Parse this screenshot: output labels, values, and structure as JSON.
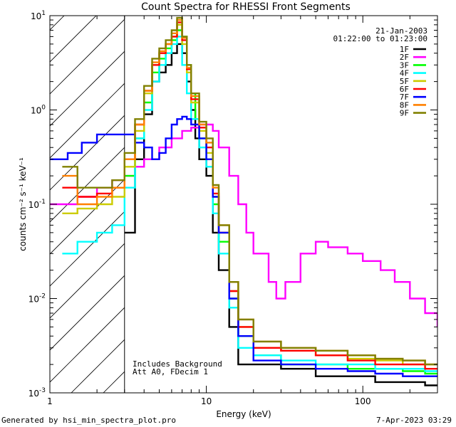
{
  "chart_data": {
    "type": "line",
    "title": "Count Spectra for RHESSI Front Segments",
    "xlabel": "Energy (keV)",
    "ylabel": "counts cm⁻² s⁻¹ keV⁻¹",
    "xscale": "log",
    "yscale": "log",
    "xlim": [
      1,
      300
    ],
    "ylim": [
      0.001,
      10
    ],
    "x_ticks": [
      {
        "value": 1,
        "label": "1"
      },
      {
        "value": 10,
        "label": "10"
      },
      {
        "value": 100,
        "label": "100"
      }
    ],
    "y_ticks": [
      {
        "value": 10,
        "label": "10",
        "exp": "1"
      },
      {
        "value": 1,
        "label": "10",
        "exp": "0"
      },
      {
        "value": 0.1,
        "label": "10",
        "exp": "-1"
      },
      {
        "value": 0.01,
        "label": "10",
        "exp": "-2"
      },
      {
        "value": 0.001,
        "label": "10",
        "exp": "-3"
      }
    ],
    "date": "21-Jan-2003",
    "time_range": "01:22:00 to 01:23:00",
    "hatched_below_keV": 3,
    "annotations": [
      "Includes Background",
      "Att A0, FDecim 1"
    ],
    "footer_left": "Generated by hsi_min_spectra_plot.pro",
    "footer_right": "7-Apr-2023 03:29",
    "series": [
      {
        "name": "1F",
        "color": "#000000",
        "points": [
          [
            3,
            0.05
          ],
          [
            3.5,
            0.3
          ],
          [
            4,
            0.9
          ],
          [
            4.5,
            2.0
          ],
          [
            5,
            2.5
          ],
          [
            5.5,
            3.0
          ],
          [
            6,
            4.0
          ],
          [
            6.5,
            5.0
          ],
          [
            7,
            4.0
          ],
          [
            7.5,
            2.0
          ],
          [
            8,
            1.0
          ],
          [
            8.5,
            0.5
          ],
          [
            9,
            0.3
          ],
          [
            10,
            0.2
          ],
          [
            11,
            0.05
          ],
          [
            12,
            0.02
          ],
          [
            14,
            0.005
          ],
          [
            16,
            0.002
          ],
          [
            20,
            0.002
          ],
          [
            30,
            0.0018
          ],
          [
            50,
            0.0015
          ],
          [
            80,
            0.0015
          ],
          [
            120,
            0.0013
          ],
          [
            180,
            0.0013
          ],
          [
            250,
            0.0012
          ],
          [
            300,
            0.0012
          ]
        ]
      },
      {
        "name": "2F",
        "color": "#ff00ff",
        "points": [
          [
            1,
            0.1
          ],
          [
            1.5,
            0.12
          ],
          [
            2,
            0.15
          ],
          [
            2.5,
            0.18
          ],
          [
            3,
            0.2
          ],
          [
            3.5,
            0.25
          ],
          [
            4,
            0.3
          ],
          [
            5,
            0.4
          ],
          [
            6,
            0.5
          ],
          [
            7,
            0.6
          ],
          [
            8,
            0.65
          ],
          [
            9,
            0.7
          ],
          [
            10,
            0.7
          ],
          [
            11,
            0.6
          ],
          [
            12,
            0.4
          ],
          [
            14,
            0.2
          ],
          [
            16,
            0.1
          ],
          [
            18,
            0.05
          ],
          [
            20,
            0.03
          ],
          [
            25,
            0.015
          ],
          [
            28,
            0.01
          ],
          [
            32,
            0.015
          ],
          [
            40,
            0.03
          ],
          [
            50,
            0.04
          ],
          [
            60,
            0.035
          ],
          [
            80,
            0.03
          ],
          [
            100,
            0.025
          ],
          [
            130,
            0.02
          ],
          [
            160,
            0.015
          ],
          [
            200,
            0.01
          ],
          [
            250,
            0.007
          ],
          [
            300,
            0.005
          ]
        ]
      },
      {
        "name": "3F",
        "color": "#00ff00",
        "points": [
          [
            3,
            0.2
          ],
          [
            3.5,
            0.5
          ],
          [
            4,
            1.2
          ],
          [
            4.5,
            2.5
          ],
          [
            5,
            3.5
          ],
          [
            5.5,
            4.5
          ],
          [
            6,
            5.5
          ],
          [
            6.5,
            7.0
          ],
          [
            7,
            6.0
          ],
          [
            7.5,
            3.0
          ],
          [
            8,
            1.5
          ],
          [
            8.5,
            0.8
          ],
          [
            9,
            0.5
          ],
          [
            10,
            0.3
          ],
          [
            11,
            0.1
          ],
          [
            12,
            0.04
          ],
          [
            14,
            0.01
          ],
          [
            16,
            0.004
          ],
          [
            20,
            0.0025
          ],
          [
            30,
            0.002
          ],
          [
            50,
            0.002
          ],
          [
            80,
            0.0018
          ],
          [
            120,
            0.0018
          ],
          [
            180,
            0.0017
          ],
          [
            250,
            0.0016
          ],
          [
            300,
            0.0016
          ]
        ]
      },
      {
        "name": "4F",
        "color": "#00ffff",
        "points": [
          [
            1.2,
            0.03
          ],
          [
            1.5,
            0.04
          ],
          [
            2,
            0.05
          ],
          [
            2.5,
            0.06
          ],
          [
            3,
            0.15
          ],
          [
            3.5,
            0.5
          ],
          [
            4,
            1.0
          ],
          [
            4.5,
            2.0
          ],
          [
            5,
            3.0
          ],
          [
            5.5,
            4.0
          ],
          [
            6,
            5.0
          ],
          [
            6.5,
            6.0
          ],
          [
            7,
            3.0
          ],
          [
            7.5,
            1.5
          ],
          [
            8,
            0.8
          ],
          [
            9,
            0.4
          ],
          [
            10,
            0.25
          ],
          [
            11,
            0.08
          ],
          [
            12,
            0.03
          ],
          [
            14,
            0.008
          ],
          [
            16,
            0.003
          ],
          [
            20,
            0.0025
          ],
          [
            30,
            0.0022
          ],
          [
            50,
            0.002
          ],
          [
            80,
            0.002
          ],
          [
            120,
            0.0018
          ],
          [
            180,
            0.0018
          ],
          [
            250,
            0.0017
          ],
          [
            300,
            0.0017
          ]
        ]
      },
      {
        "name": "5F",
        "color": "#cccc00",
        "points": [
          [
            1.2,
            0.08
          ],
          [
            1.5,
            0.09
          ],
          [
            2,
            0.1
          ],
          [
            2.5,
            0.12
          ],
          [
            3,
            0.25
          ],
          [
            3.5,
            0.6
          ],
          [
            4,
            1.5
          ],
          [
            4.5,
            3.0
          ],
          [
            5,
            4.0
          ],
          [
            5.5,
            5.0
          ],
          [
            6,
            6.0
          ],
          [
            6.5,
            8.0
          ],
          [
            7,
            5.0
          ],
          [
            7.5,
            2.5
          ],
          [
            8,
            1.2
          ],
          [
            9,
            0.6
          ],
          [
            10,
            0.35
          ],
          [
            11,
            0.12
          ],
          [
            12,
            0.05
          ],
          [
            14,
            0.012
          ],
          [
            16,
            0.005
          ],
          [
            20,
            0.003
          ],
          [
            30,
            0.0028
          ],
          [
            50,
            0.0025
          ],
          [
            80,
            0.0023
          ],
          [
            120,
            0.0022
          ],
          [
            180,
            0.002
          ],
          [
            250,
            0.002
          ],
          [
            300,
            0.002
          ]
        ]
      },
      {
        "name": "6F",
        "color": "#ff0000",
        "points": [
          [
            1.2,
            0.15
          ],
          [
            1.5,
            0.12
          ],
          [
            2,
            0.13
          ],
          [
            2.5,
            0.15
          ],
          [
            3,
            0.3
          ],
          [
            3.5,
            0.7
          ],
          [
            4,
            1.6
          ],
          [
            4.5,
            3.0
          ],
          [
            5,
            4.0
          ],
          [
            5.5,
            5.0
          ],
          [
            6,
            6.0
          ],
          [
            6.5,
            8.5
          ],
          [
            7,
            5.5
          ],
          [
            7.5,
            2.7
          ],
          [
            8,
            1.3
          ],
          [
            9,
            0.65
          ],
          [
            10,
            0.4
          ],
          [
            11,
            0.13
          ],
          [
            12,
            0.05
          ],
          [
            14,
            0.012
          ],
          [
            16,
            0.005
          ],
          [
            20,
            0.003
          ],
          [
            30,
            0.0028
          ],
          [
            50,
            0.0025
          ],
          [
            80,
            0.0022
          ],
          [
            120,
            0.002
          ],
          [
            180,
            0.002
          ],
          [
            250,
            0.0018
          ],
          [
            300,
            0.0018
          ]
        ]
      },
      {
        "name": "7F",
        "color": "#0000ff",
        "points": [
          [
            1,
            0.3
          ],
          [
            1.3,
            0.35
          ],
          [
            1.6,
            0.45
          ],
          [
            2,
            0.55
          ],
          [
            2.5,
            0.55
          ],
          [
            3,
            0.55
          ],
          [
            3.5,
            0.45
          ],
          [
            4,
            0.4
          ],
          [
            4.5,
            0.3
          ],
          [
            5,
            0.35
          ],
          [
            5.5,
            0.5
          ],
          [
            6,
            0.7
          ],
          [
            6.5,
            0.8
          ],
          [
            7,
            0.85
          ],
          [
            7.5,
            0.8
          ],
          [
            8,
            0.7
          ],
          [
            9,
            0.5
          ],
          [
            10,
            0.3
          ],
          [
            11,
            0.12
          ],
          [
            12,
            0.05
          ],
          [
            14,
            0.01
          ],
          [
            16,
            0.004
          ],
          [
            20,
            0.0022
          ],
          [
            30,
            0.002
          ],
          [
            50,
            0.0018
          ],
          [
            80,
            0.0017
          ],
          [
            120,
            0.0016
          ],
          [
            180,
            0.0015
          ],
          [
            250,
            0.0015
          ],
          [
            300,
            0.0015
          ]
        ]
      },
      {
        "name": "8F",
        "color": "#ff8000",
        "points": [
          [
            1.2,
            0.2
          ],
          [
            1.5,
            0.1
          ],
          [
            2,
            0.12
          ],
          [
            2.5,
            0.15
          ],
          [
            3,
            0.3
          ],
          [
            3.5,
            0.7
          ],
          [
            4,
            1.6
          ],
          [
            4.5,
            3.2
          ],
          [
            5,
            4.2
          ],
          [
            5.5,
            5.0
          ],
          [
            6,
            6.5
          ],
          [
            6.5,
            9.0
          ],
          [
            7,
            5.8
          ],
          [
            7.5,
            2.8
          ],
          [
            8,
            1.4
          ],
          [
            9,
            0.7
          ],
          [
            10,
            0.45
          ],
          [
            11,
            0.15
          ],
          [
            12,
            0.06
          ],
          [
            14,
            0.015
          ],
          [
            16,
            0.006
          ],
          [
            20,
            0.0035
          ],
          [
            30,
            0.003
          ],
          [
            50,
            0.0028
          ],
          [
            80,
            0.0025
          ],
          [
            120,
            0.0023
          ],
          [
            180,
            0.0022
          ],
          [
            250,
            0.002
          ],
          [
            300,
            0.002
          ]
        ]
      },
      {
        "name": "9F",
        "color": "#808000",
        "points": [
          [
            1.2,
            0.25
          ],
          [
            1.5,
            0.15
          ],
          [
            2,
            0.15
          ],
          [
            2.5,
            0.18
          ],
          [
            3,
            0.35
          ],
          [
            3.5,
            0.8
          ],
          [
            4,
            1.8
          ],
          [
            4.5,
            3.5
          ],
          [
            5,
            4.5
          ],
          [
            5.5,
            5.5
          ],
          [
            6,
            7.0
          ],
          [
            6.5,
            9.5
          ],
          [
            7,
            6.0
          ],
          [
            7.5,
            3.0
          ],
          [
            8,
            1.5
          ],
          [
            9,
            0.75
          ],
          [
            10,
            0.5
          ],
          [
            11,
            0.16
          ],
          [
            12,
            0.06
          ],
          [
            14,
            0.015
          ],
          [
            16,
            0.006
          ],
          [
            20,
            0.0035
          ],
          [
            30,
            0.003
          ],
          [
            50,
            0.0028
          ],
          [
            80,
            0.0025
          ],
          [
            120,
            0.0023
          ],
          [
            180,
            0.0022
          ],
          [
            250,
            0.002
          ],
          [
            300,
            0.002
          ]
        ]
      }
    ]
  }
}
